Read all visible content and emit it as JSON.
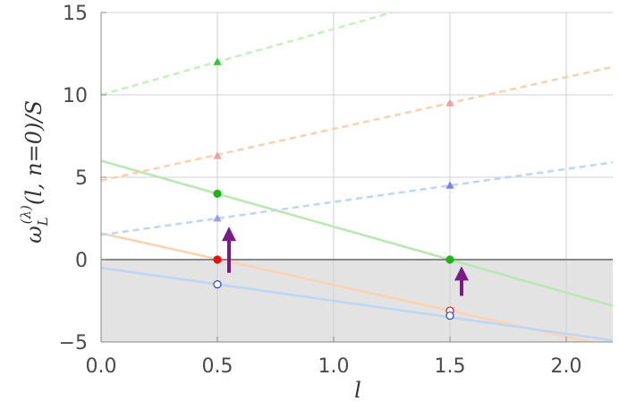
{
  "chart_data": {
    "type": "line",
    "xlabel": "l",
    "ylabel_main": "ω",
    "ylabel_sub": "L",
    "ylabel_sup": "(λ)",
    "ylabel_tail": "(l, n=0)/S",
    "xlim": [
      0.0,
      2.2
    ],
    "ylim": [
      -5,
      15
    ],
    "x_ticks": [
      0.0,
      0.5,
      1.0,
      1.5,
      2.0
    ],
    "x_tick_labels": [
      "0.0",
      "0.5",
      "1.0",
      "1.5",
      "2.0"
    ],
    "y_ticks": [
      -5,
      0,
      5,
      10,
      15
    ],
    "y_tick_labels": [
      "−5",
      "0",
      "5",
      "10",
      "15"
    ],
    "grid": true,
    "shaded_region": {
      "y_from": -5,
      "y_to": 0,
      "color": "#e3e3e3"
    },
    "zero_line_color": "#666666",
    "series": [
      {
        "color": "#b8e8b0",
        "style": "solid",
        "x": [
          0.0,
          2.2
        ],
        "y": [
          6.0,
          -2.8
        ]
      },
      {
        "color": "#fcd3b0",
        "style": "solid",
        "x": [
          0.0,
          2.2
        ],
        "y": [
          1.6,
          -5.3
        ]
      },
      {
        "color": "#bcd6f4",
        "style": "solid",
        "x": [
          0.0,
          2.2
        ],
        "y": [
          -0.5,
          -4.9
        ]
      },
      {
        "color": "#c4f0bc",
        "style": "dashed",
        "x": [
          0.0,
          1.25
        ],
        "y": [
          10.0,
          15.0
        ]
      },
      {
        "color": "#fcd0ac",
        "style": "dashed",
        "x": [
          0.0,
          2.2
        ],
        "y": [
          4.8,
          11.7
        ]
      },
      {
        "color": "#bcd6f4",
        "style": "dashed",
        "x": [
          0.0,
          2.2
        ],
        "y": [
          1.5,
          5.9
        ]
      }
    ],
    "markers": [
      {
        "x": 0.5,
        "y": 12.0,
        "shape": "triangle",
        "color": "#2ecc2e",
        "filled": true
      },
      {
        "x": 0.5,
        "y": 6.3,
        "shape": "triangle",
        "color": "#f0a0a0",
        "filled": true
      },
      {
        "x": 0.5,
        "y": 2.5,
        "shape": "triangle",
        "color": "#9aa0f0",
        "filled": true
      },
      {
        "x": 1.5,
        "y": 9.5,
        "shape": "triangle",
        "color": "#f0a0a0",
        "filled": true
      },
      {
        "x": 1.5,
        "y": 4.5,
        "shape": "triangle",
        "color": "#7a80f0",
        "filled": true
      },
      {
        "x": 0.5,
        "y": 4.0,
        "shape": "circle",
        "color": "#1bb51b",
        "filled": true
      },
      {
        "x": 0.5,
        "y": 0.0,
        "shape": "circle",
        "color": "#e81010",
        "filled": true
      },
      {
        "x": 0.5,
        "y": -1.5,
        "shape": "circle",
        "color": "#3040d0",
        "filled": false
      },
      {
        "x": 1.5,
        "y": 0.0,
        "shape": "circle",
        "color": "#1bb51b",
        "filled": true
      },
      {
        "x": 1.5,
        "y": -3.1,
        "shape": "circle",
        "color": "#e81010",
        "filled": false
      },
      {
        "x": 1.5,
        "y": -3.4,
        "shape": "circle",
        "color": "#3040d0",
        "filled": false
      }
    ],
    "arrows": [
      {
        "x": 0.55,
        "y_from": -0.8,
        "y_to": 2.0,
        "color": "#7a1a8a"
      },
      {
        "x": 1.55,
        "y_from": -2.2,
        "y_to": -0.4,
        "color": "#7a1a8a"
      }
    ]
  }
}
